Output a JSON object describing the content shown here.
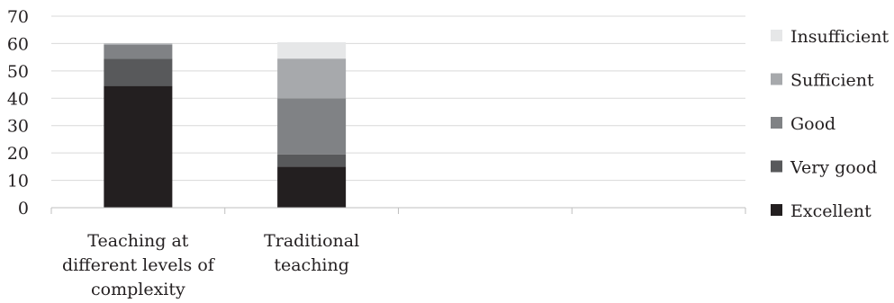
{
  "chart_data": {
    "type": "bar",
    "stacked": true,
    "categories": [
      [
        "Teaching at",
        "different levels of",
        "complexity"
      ],
      [
        "Traditional",
        "teaching"
      ],
      [
        ""
      ],
      [
        ""
      ]
    ],
    "series": [
      {
        "name": "Excellent",
        "color": "#231f20",
        "values": [
          44.5,
          15,
          0,
          0
        ]
      },
      {
        "name": "Very good",
        "color": "#58595b",
        "values": [
          10,
          4.5,
          0,
          0
        ]
      },
      {
        "name": "Good",
        "color": "#808285",
        "values": [
          5,
          20.5,
          0,
          0
        ]
      },
      {
        "name": "Sufficient",
        "color": "#a7a9ac",
        "values": [
          0.5,
          14.5,
          0,
          0
        ]
      },
      {
        "name": "Insufficient",
        "color": "#e6e7e8",
        "values": [
          0,
          6,
          0,
          0
        ]
      }
    ],
    "ylim": [
      0,
      70
    ],
    "yticks": [
      0,
      10,
      20,
      30,
      40,
      50,
      60,
      70
    ],
    "xlabel": "",
    "ylabel": "",
    "grid": true,
    "legend_position": "right"
  }
}
